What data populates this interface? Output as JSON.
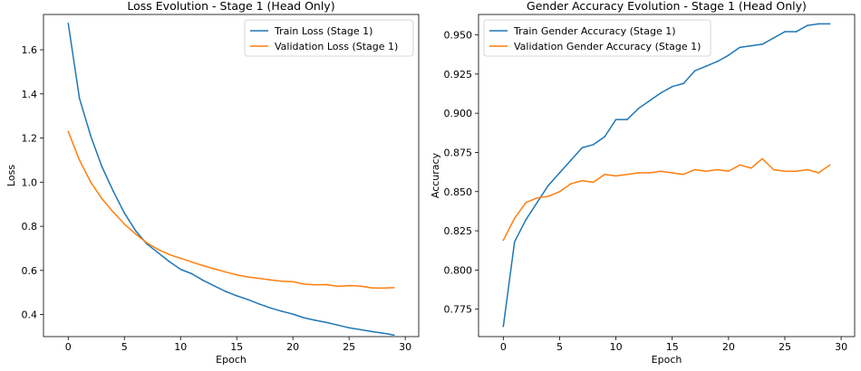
{
  "chart_data": [
    {
      "type": "line",
      "title": "Loss Evolution - Stage 1 (Head Only)",
      "xlabel": "Epoch",
      "ylabel": "Loss",
      "xlim": [
        -2.2,
        31.2
      ],
      "ylim": [
        0.3,
        1.76
      ],
      "xticks": [
        0,
        5,
        10,
        15,
        20,
        25,
        30
      ],
      "yticks": [
        0.4,
        0.6,
        0.8,
        1.0,
        1.2,
        1.4,
        1.6
      ],
      "ytick_format": 1,
      "grid": false,
      "legend_position": "upper right",
      "x": [
        0,
        1,
        2,
        3,
        4,
        5,
        6,
        7,
        8,
        9,
        10,
        11,
        12,
        13,
        14,
        15,
        16,
        17,
        18,
        19,
        20,
        21,
        22,
        23,
        24,
        25,
        26,
        27,
        28,
        29
      ],
      "series": [
        {
          "name": "Train Loss (Stage 1)",
          "color": "#1f77b4",
          "values": [
            1.72,
            1.38,
            1.21,
            1.07,
            0.96,
            0.86,
            0.78,
            0.72,
            0.68,
            0.64,
            0.605,
            0.585,
            0.555,
            0.53,
            0.505,
            0.485,
            0.468,
            0.448,
            0.43,
            0.415,
            0.402,
            0.385,
            0.374,
            0.364,
            0.352,
            0.34,
            0.332,
            0.323,
            0.316,
            0.307
          ]
        },
        {
          "name": "Validation Loss (Stage 1)",
          "color": "#ff7f0e",
          "values": [
            1.23,
            1.1,
            1.0,
            0.925,
            0.865,
            0.81,
            0.765,
            0.725,
            0.695,
            0.672,
            0.655,
            0.638,
            0.622,
            0.607,
            0.593,
            0.58,
            0.57,
            0.564,
            0.557,
            0.551,
            0.549,
            0.538,
            0.535,
            0.536,
            0.528,
            0.531,
            0.529,
            0.521,
            0.52,
            0.522
          ]
        }
      ]
    },
    {
      "type": "line",
      "title": "Gender Accuracy Evolution - Stage 1 (Head Only)",
      "xlabel": "Epoch",
      "ylabel": "Accuracy",
      "xlim": [
        -2.2,
        31.2
      ],
      "ylim": [
        0.7575,
        0.963
      ],
      "xticks": [
        0,
        5,
        10,
        15,
        20,
        25,
        30
      ],
      "yticks": [
        0.775,
        0.8,
        0.825,
        0.85,
        0.875,
        0.9,
        0.925,
        0.95
      ],
      "ytick_format": 3,
      "grid": false,
      "legend_position": "upper left",
      "x": [
        0,
        1,
        2,
        3,
        4,
        5,
        6,
        7,
        8,
        9,
        10,
        11,
        12,
        13,
        14,
        15,
        16,
        17,
        18,
        19,
        20,
        21,
        22,
        23,
        24,
        25,
        26,
        27,
        28,
        29
      ],
      "series": [
        {
          "name": "Train Gender Accuracy (Stage 1)",
          "color": "#1f77b4",
          "values": [
            0.764,
            0.818,
            0.832,
            0.843,
            0.854,
            0.862,
            0.87,
            0.878,
            0.88,
            0.885,
            0.896,
            0.896,
            0.903,
            0.908,
            0.913,
            0.917,
            0.919,
            0.927,
            0.93,
            0.933,
            0.937,
            0.942,
            0.943,
            0.944,
            0.948,
            0.952,
            0.952,
            0.956,
            0.957,
            0.957
          ]
        },
        {
          "name": "Validation Gender Accuracy (Stage 1)",
          "color": "#ff7f0e",
          "values": [
            0.819,
            0.833,
            0.843,
            0.846,
            0.847,
            0.85,
            0.855,
            0.857,
            0.856,
            0.861,
            0.86,
            0.861,
            0.862,
            0.862,
            0.863,
            0.862,
            0.861,
            0.864,
            0.863,
            0.864,
            0.863,
            0.867,
            0.865,
            0.871,
            0.864,
            0.863,
            0.863,
            0.864,
            0.862,
            0.867
          ]
        }
      ]
    }
  ]
}
